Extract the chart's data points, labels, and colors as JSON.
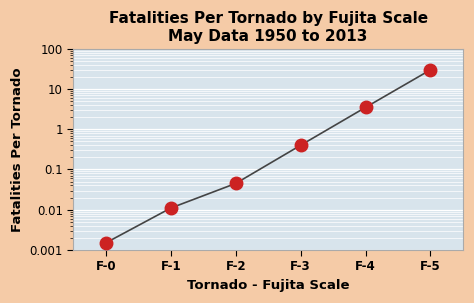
{
  "title_line1": "Fatalities Per Tornado by Fujita Scale",
  "title_line2": "May Data 1950 to 2013",
  "xlabel": "Tornado - Fujita Scale",
  "ylabel": "Fatalities Per Tornado",
  "categories": [
    "F-0",
    "F-1",
    "F-2",
    "F-3",
    "F-4",
    "F-5"
  ],
  "x_values": [
    0,
    1,
    2,
    3,
    4,
    5
  ],
  "y_values": [
    0.0015,
    0.011,
    0.045,
    0.4,
    3.5,
    30
  ],
  "point_color": "#cc2222",
  "line_color": "#444444",
  "background_color": "#f5cba7",
  "plot_bg_color": "#d8e4ec",
  "grid_color": "#ffffff",
  "spine_color": "#aaaaaa",
  "ylim_bottom": 0.001,
  "ylim_top": 100,
  "title_fontsize": 11,
  "label_fontsize": 9.5,
  "tick_fontsize": 8.5,
  "marker_size": 9,
  "xlim_left": -0.5,
  "xlim_right": 5.5
}
